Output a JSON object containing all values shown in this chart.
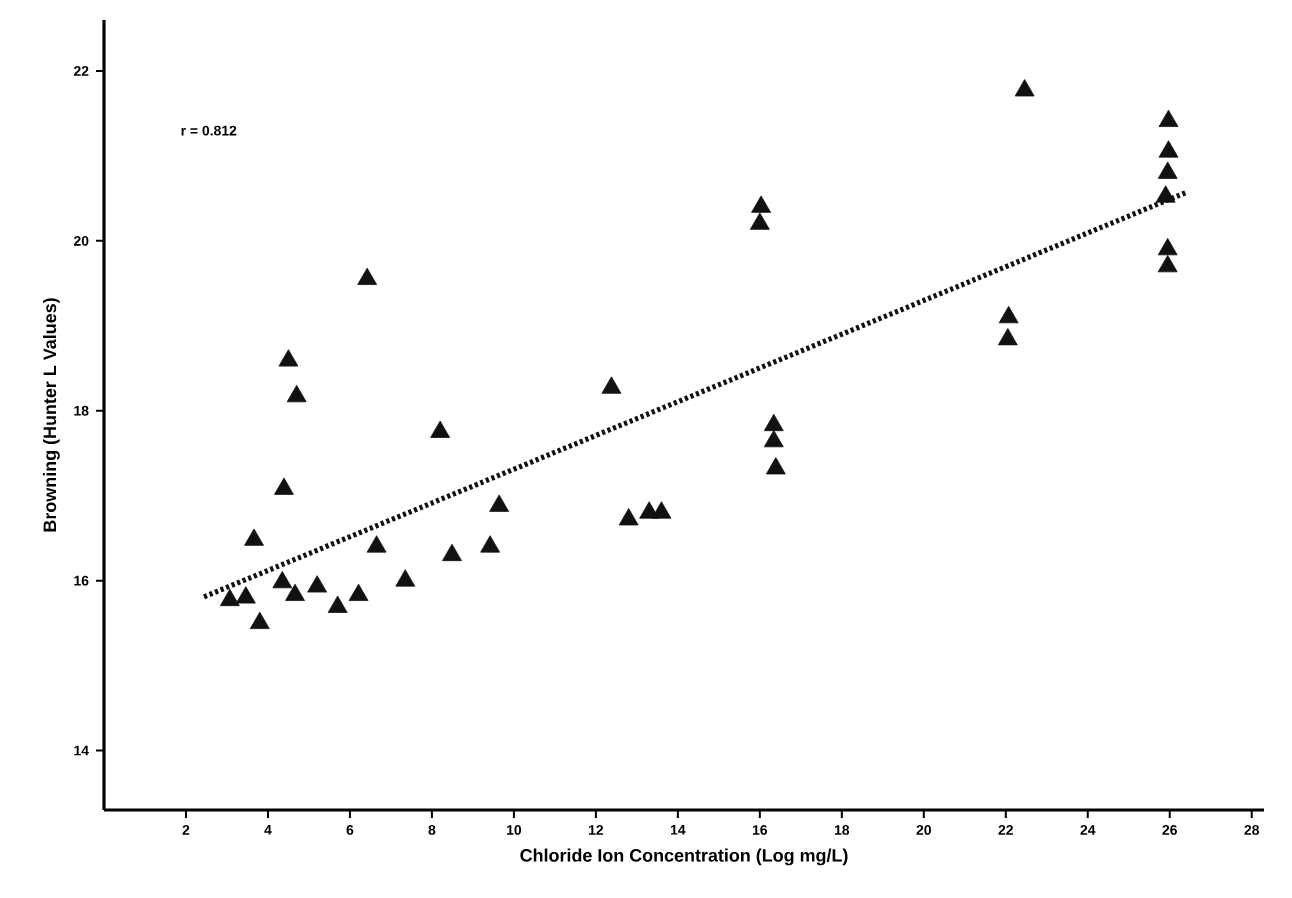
{
  "chart_data": {
    "type": "scatter",
    "xlabel": "Chloride Ion Concentration (Log mg/L)",
    "ylabel": "Browning (Hunter L Values)",
    "annotations": [
      "r = 0.812"
    ],
    "xlim": [
      0,
      28.3
    ],
    "xticks": [
      2,
      4,
      6,
      8,
      10,
      12,
      14,
      16,
      18,
      20,
      22,
      24,
      26,
      28
    ],
    "ylim": [
      13.3,
      22.6
    ],
    "yticks": [
      14,
      16,
      18,
      20,
      22
    ],
    "grid": false,
    "marker": "triangle",
    "series": [
      {
        "color": "#111111",
        "x": [
          3.07,
          3.46,
          3.8,
          3.66,
          4.39,
          4.5,
          4.7,
          4.35,
          4.66,
          5.2,
          5.7,
          6.21,
          6.42,
          6.65,
          7.35,
          8.2,
          8.49,
          9.42,
          9.64,
          12.38,
          12.8,
          13.3,
          13.6,
          16.03,
          16.0,
          16.34,
          16.34,
          16.39,
          22.46,
          22.07,
          22.05,
          25.97,
          25.97,
          25.95,
          25.9,
          25.95,
          25.95
        ],
        "values": [
          15.77,
          15.8,
          15.5,
          16.48,
          17.08,
          18.59,
          18.17,
          15.98,
          15.83,
          15.93,
          15.69,
          15.83,
          19.55,
          16.4,
          16.0,
          17.75,
          16.3,
          16.4,
          16.88,
          18.27,
          16.72,
          16.8,
          16.8,
          20.4,
          20.2,
          17.83,
          17.64,
          17.32,
          21.77,
          19.1,
          18.84,
          21.41,
          21.05,
          20.8,
          20.52,
          19.9,
          19.7
        ]
      },
      {
        "type": "line",
        "color": "#111111",
        "marker": "none",
        "line_style": "dotted",
        "x": [
          2.44,
          26.4
        ],
        "values": [
          15.81,
          20.57
        ]
      }
    ]
  }
}
